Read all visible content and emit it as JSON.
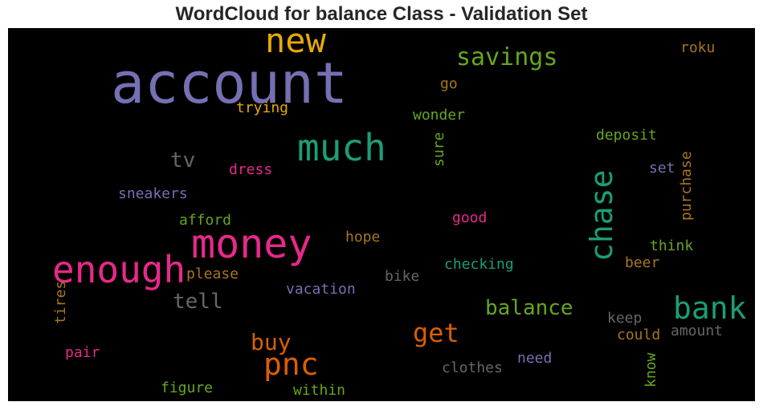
{
  "title": "WordCloud for balance Class - Validation Set",
  "colors": {
    "purple": "#7570b3",
    "orange": "#d95f02",
    "gold": "#e6ab02",
    "teal": "#1b9e77",
    "pink": "#e7298a",
    "green": "#66a61e",
    "brown": "#a6761d",
    "gray": "#666666"
  },
  "words": [
    {
      "text": "account",
      "color": "purple"
    },
    {
      "text": "new",
      "color": "gold"
    },
    {
      "text": "savings",
      "color": "green"
    },
    {
      "text": "roku",
      "color": "brown"
    },
    {
      "text": "go",
      "color": "brown"
    },
    {
      "text": "trying",
      "color": "gold"
    },
    {
      "text": "wonder",
      "color": "green"
    },
    {
      "text": "much",
      "color": "teal"
    },
    {
      "text": "deposit",
      "color": "green"
    },
    {
      "text": "tv",
      "color": "gray"
    },
    {
      "text": "sure",
      "color": "green"
    },
    {
      "text": "dress",
      "color": "pink"
    },
    {
      "text": "set",
      "color": "purple"
    },
    {
      "text": "purchase",
      "color": "brown"
    },
    {
      "text": "chase",
      "color": "teal"
    },
    {
      "text": "sneakers",
      "color": "purple"
    },
    {
      "text": "afford",
      "color": "green"
    },
    {
      "text": "good",
      "color": "pink"
    },
    {
      "text": "money",
      "color": "pink"
    },
    {
      "text": "hope",
      "color": "brown"
    },
    {
      "text": "think",
      "color": "green"
    },
    {
      "text": "enough",
      "color": "pink"
    },
    {
      "text": "checking",
      "color": "teal"
    },
    {
      "text": "beer",
      "color": "brown"
    },
    {
      "text": "please",
      "color": "brown"
    },
    {
      "text": "bike",
      "color": "gray"
    },
    {
      "text": "vacation",
      "color": "purple"
    },
    {
      "text": "tell",
      "color": "gray"
    },
    {
      "text": "balance",
      "color": "green"
    },
    {
      "text": "bank",
      "color": "teal"
    },
    {
      "text": "tires",
      "color": "brown"
    },
    {
      "text": "keep",
      "color": "gray"
    },
    {
      "text": "get",
      "color": "orange"
    },
    {
      "text": "could",
      "color": "brown"
    },
    {
      "text": "amount",
      "color": "gray"
    },
    {
      "text": "buy",
      "color": "orange"
    },
    {
      "text": "pair",
      "color": "pink"
    },
    {
      "text": "pnc",
      "color": "orange"
    },
    {
      "text": "need",
      "color": "purple"
    },
    {
      "text": "know",
      "color": "green"
    },
    {
      "text": "clothes",
      "color": "gray"
    },
    {
      "text": "figure",
      "color": "green"
    },
    {
      "text": "within",
      "color": "green"
    }
  ]
}
